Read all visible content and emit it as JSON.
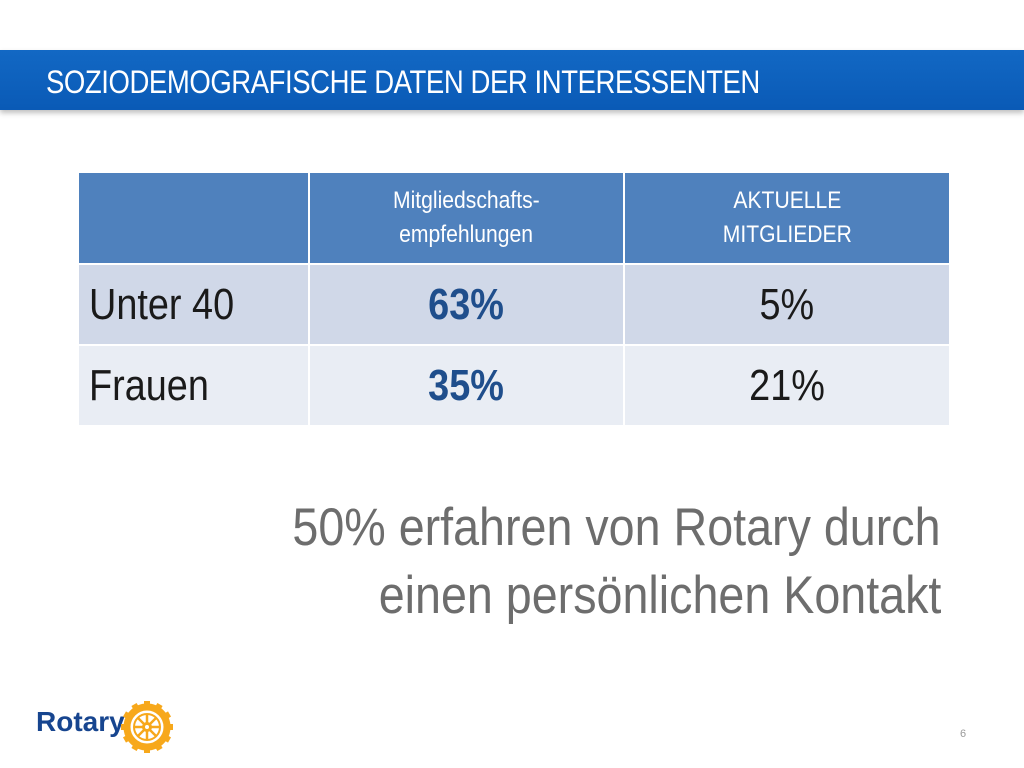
{
  "slide": {
    "title": "SOZIODEMOGRAFISCHE DATEN DER INTERESSENTEN",
    "page_number": "6"
  },
  "table": {
    "headers": [
      "",
      "Mitgliedschafts-\nempfehlungen",
      "AKTUELLE\nMITGLIEDER"
    ],
    "rows": [
      {
        "label": "Unter 40",
        "recommendations": "63%",
        "current_members": "5%"
      },
      {
        "label": "Frauen",
        "recommendations": "35%",
        "current_members": "21%"
      }
    ]
  },
  "statement": {
    "line1": "50% erfahren von Rotary durch",
    "line2": "einen persönlichen Kontakt"
  },
  "logo": {
    "wordmark": "Rotary",
    "brand_color": "#17458f",
    "wheel_color": "#f7a81b",
    "wheel_icon": "rotary-wheel-icon"
  },
  "colors": {
    "title_bar": "#0a5ab6",
    "header_fill": "#4f81bd",
    "row_odd": "#d0d8e8",
    "row_even": "#e9edf4",
    "highlight_value": "#1f4e8c"
  }
}
